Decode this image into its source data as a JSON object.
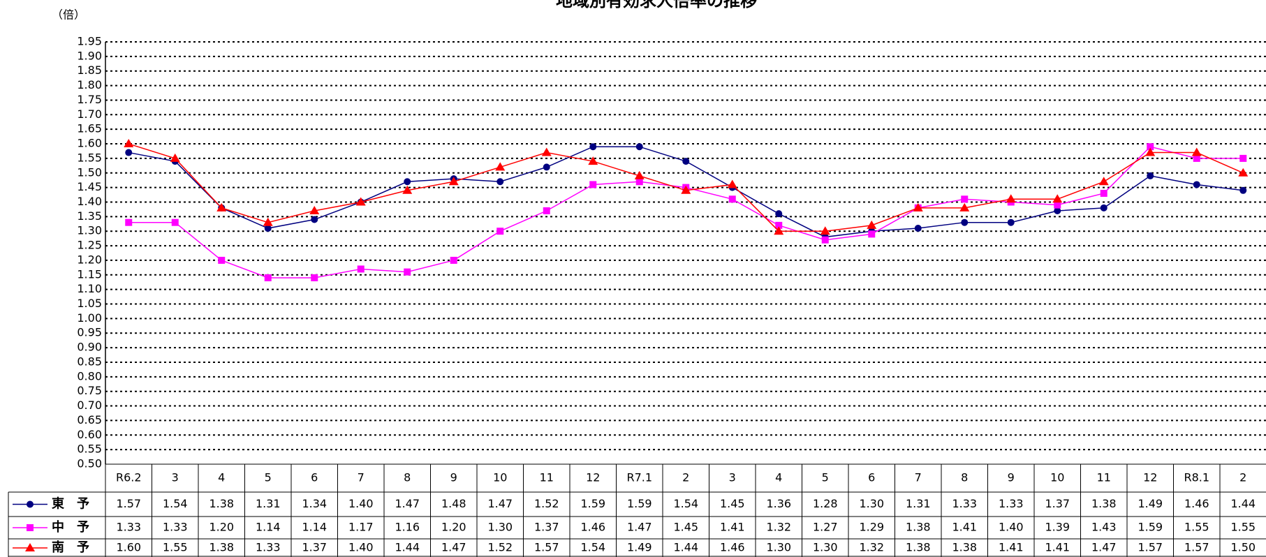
{
  "chart_data": {
    "type": "line",
    "title": "地域別有効求人倍率の推移",
    "y_unit": "（倍）",
    "categories": [
      "R6.2",
      "3",
      "4",
      "5",
      "6",
      "7",
      "8",
      "9",
      "10",
      "11",
      "12",
      "R7.1",
      "2",
      "3",
      "4",
      "5",
      "6",
      "7",
      "8",
      "9",
      "10",
      "11",
      "12",
      "R8.1",
      "2"
    ],
    "series": [
      {
        "name": "東　予",
        "color": "#000080",
        "marker": "circle",
        "values": [
          1.57,
          1.54,
          1.38,
          1.31,
          1.34,
          1.4,
          1.47,
          1.48,
          1.47,
          1.52,
          1.59,
          1.59,
          1.54,
          1.45,
          1.36,
          1.28,
          1.3,
          1.31,
          1.33,
          1.33,
          1.37,
          1.38,
          1.49,
          1.46,
          1.44
        ],
        "value_labels": [
          "1.57",
          "1.54",
          "1.38",
          "1.31",
          "1.34",
          "1.40",
          "1.47",
          "1.48",
          "1.47",
          "1.52",
          "1.59",
          "1.59",
          "1.54",
          "1.45",
          "1.36",
          "1.28",
          "1.30",
          "1.31",
          "1.33",
          "1.33",
          "1.37",
          "1.38",
          "1.49",
          "1.46",
          "1.44"
        ]
      },
      {
        "name": "中　予",
        "color": "#ff00ff",
        "marker": "square",
        "values": [
          1.33,
          1.33,
          1.2,
          1.14,
          1.14,
          1.17,
          1.16,
          1.2,
          1.3,
          1.37,
          1.46,
          1.47,
          1.45,
          1.41,
          1.32,
          1.27,
          1.29,
          1.38,
          1.41,
          1.4,
          1.39,
          1.43,
          1.59,
          1.55,
          1.55
        ],
        "value_labels": [
          "1.33",
          "1.33",
          "1.20",
          "1.14",
          "1.14",
          "1.17",
          "1.16",
          "1.20",
          "1.30",
          "1.37",
          "1.46",
          "1.47",
          "1.45",
          "1.41",
          "1.32",
          "1.27",
          "1.29",
          "1.38",
          "1.41",
          "1.40",
          "1.39",
          "1.43",
          "1.59",
          "1.55",
          "1.55"
        ]
      },
      {
        "name": "南　予",
        "color": "#ff0000",
        "marker": "triangle",
        "values": [
          1.6,
          1.55,
          1.38,
          1.33,
          1.37,
          1.4,
          1.44,
          1.47,
          1.52,
          1.57,
          1.54,
          1.49,
          1.44,
          1.46,
          1.3,
          1.3,
          1.32,
          1.38,
          1.38,
          1.41,
          1.41,
          1.47,
          1.57,
          1.57,
          1.5
        ],
        "value_labels": [
          "1.60",
          "1.55",
          "1.38",
          "1.33",
          "1.37",
          "1.40",
          "1.44",
          "1.47",
          "1.52",
          "1.57",
          "1.54",
          "1.49",
          "1.44",
          "1.46",
          "1.30",
          "1.30",
          "1.32",
          "1.38",
          "1.38",
          "1.41",
          "1.41",
          "1.47",
          "1.57",
          "1.57",
          "1.50"
        ]
      }
    ],
    "ylim": [
      0.5,
      1.95
    ],
    "yticks": [
      {
        "value": 0.5,
        "label": "0.50"
      },
      {
        "value": 0.55,
        "label": "0.55"
      },
      {
        "value": 0.6,
        "label": "0.60"
      },
      {
        "value": 0.65,
        "label": "0.65"
      },
      {
        "value": 0.7,
        "label": "0.70"
      },
      {
        "value": 0.75,
        "label": "0.75"
      },
      {
        "value": 0.8,
        "label": "0.80"
      },
      {
        "value": 0.85,
        "label": "0.85"
      },
      {
        "value": 0.9,
        "label": "0.90"
      },
      {
        "value": 0.95,
        "label": "0.95"
      },
      {
        "value": 1.0,
        "label": "1.00"
      },
      {
        "value": 1.05,
        "label": "1.05"
      },
      {
        "value": 1.1,
        "label": "1.10"
      },
      {
        "value": 1.15,
        "label": "1.15"
      },
      {
        "value": 1.2,
        "label": "1.20"
      },
      {
        "value": 1.25,
        "label": "1.25"
      },
      {
        "value": 1.3,
        "label": "1.30"
      },
      {
        "value": 1.35,
        "label": "1.35"
      },
      {
        "value": 1.4,
        "label": "1.40"
      },
      {
        "value": 1.45,
        "label": "1.45"
      },
      {
        "value": 1.5,
        "label": "1.50"
      },
      {
        "value": 1.55,
        "label": "1.55"
      },
      {
        "value": 1.6,
        "label": "1.60"
      },
      {
        "value": 1.65,
        "label": "1.65"
      },
      {
        "value": 1.7,
        "label": "1.70"
      },
      {
        "value": 1.75,
        "label": "1.75"
      },
      {
        "value": 1.8,
        "label": "1.80"
      },
      {
        "value": 1.85,
        "label": "1.85"
      },
      {
        "value": 1.9,
        "label": "1.90"
      },
      {
        "value": 1.95,
        "label": "1.95"
      }
    ],
    "grid": true
  }
}
